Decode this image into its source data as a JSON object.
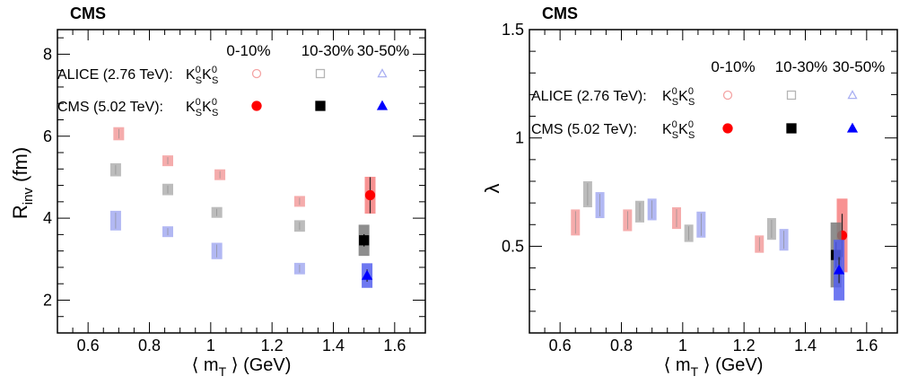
{
  "chart_data": [
    {
      "type": "scatter",
      "experiment_label": "CMS",
      "ylabel_main": "R",
      "ylabel_sub": "inv",
      "ylabel_unit": " (fm)",
      "xlabel_main": "⟨ m",
      "xlabel_sub": "T",
      "xlabel_unit": " ⟩ (GeV)",
      "xlim": [
        0.5,
        1.7
      ],
      "ylim": [
        1.2,
        8.6
      ],
      "xticks": [
        0.6,
        0.8,
        1.0,
        1.2,
        1.4,
        1.6
      ],
      "xtick_labels": [
        "0.6",
        "0.8",
        "1",
        "1.2",
        "1.4",
        "1.6"
      ],
      "yticks": [
        2,
        4,
        6,
        8
      ],
      "ytick_labels": [
        "2",
        "4",
        "6",
        "8"
      ],
      "legend": {
        "headers": [
          "0-10%",
          "10-30%",
          "30-50%"
        ],
        "rows": [
          {
            "label": "ALICE (2.76 TeV):",
            "reaction": "K",
            "sup": "0",
            "sub": "S"
          },
          {
            "label": "CMS (5.02 TeV):",
            "reaction": "K",
            "sup": "0",
            "sub": "S"
          }
        ]
      },
      "series": [
        {
          "name": "ALICE 0-10%",
          "color": "#f4a3a3",
          "marker": "square-box",
          "points": [
            {
              "x": 0.7,
              "y": 6.06,
              "err": 0.16
            },
            {
              "x": 0.86,
              "y": 5.4,
              "err": 0.12
            },
            {
              "x": 1.03,
              "y": 5.06,
              "err": 0.1
            },
            {
              "x": 1.29,
              "y": 4.41,
              "err": 0.12
            }
          ]
        },
        {
          "name": "ALICE 10-30%",
          "color": "#b5b5b5",
          "marker": "square-box",
          "points": [
            {
              "x": 0.69,
              "y": 5.18,
              "err": 0.16
            },
            {
              "x": 0.86,
              "y": 4.7,
              "err": 0.14
            },
            {
              "x": 1.02,
              "y": 4.14,
              "err": 0.12
            },
            {
              "x": 1.29,
              "y": 3.81,
              "err": 0.14
            }
          ]
        },
        {
          "name": "ALICE 30-50%",
          "color": "#aab0f2",
          "marker": "square-box",
          "points": [
            {
              "x": 0.69,
              "y": 3.94,
              "err": 0.24
            },
            {
              "x": 0.86,
              "y": 3.67,
              "err": 0.12
            },
            {
              "x": 1.02,
              "y": 3.2,
              "err": 0.2
            },
            {
              "x": 1.29,
              "y": 2.77,
              "err": 0.14
            }
          ]
        },
        {
          "name": "CMS 0-10%",
          "color": "#ff0000",
          "box_color": "#f77f7f",
          "marker": "circle",
          "points": [
            {
              "x": 1.52,
              "y": 4.56,
              "err": 0.44,
              "syst": 0.45
            }
          ]
        },
        {
          "name": "CMS 10-30%",
          "color": "#000000",
          "box_color": "#7a7a7a",
          "marker": "square",
          "points": [
            {
              "x": 1.5,
              "y": 3.46,
              "err": 0.15,
              "syst": 0.38
            }
          ]
        },
        {
          "name": "CMS 30-50%",
          "color": "#0000ff",
          "box_color": "#5560ee",
          "marker": "triangle",
          "points": [
            {
              "x": 1.51,
              "y": 2.6,
              "err": 0.15,
              "syst": 0.3
            }
          ]
        }
      ]
    },
    {
      "type": "scatter",
      "experiment_label": "CMS",
      "ylabel_main": "λ",
      "xlabel_main": "⟨ m",
      "xlabel_sub": "T",
      "xlabel_unit": " ⟩ (GeV)",
      "xlim": [
        0.5,
        1.7
      ],
      "ylim": [
        0.1,
        1.5
      ],
      "xticks": [
        0.6,
        0.8,
        1.0,
        1.2,
        1.4,
        1.6
      ],
      "xtick_labels": [
        "0.6",
        "0.8",
        "1",
        "1.2",
        "1.4",
        "1.6"
      ],
      "yticks": [
        0.5,
        1.0,
        1.5
      ],
      "ytick_labels": [
        "0.5",
        "1",
        "1.5"
      ],
      "legend": {
        "headers": [
          "0-10%",
          "10-30%",
          "30-50%"
        ],
        "rows": [
          {
            "label": "ALICE (2.76 TeV):",
            "reaction": "K",
            "sup": "0",
            "sub": "S"
          },
          {
            "label": "CMS (5.02 TeV):",
            "reaction": "K",
            "sup": "0",
            "sub": "S"
          }
        ]
      },
      "series": [
        {
          "name": "ALICE 0-10%",
          "color": "#f4a3a3",
          "marker": "square-box",
          "points": [
            {
              "x": 0.65,
              "y": 0.61,
              "err": 0.06
            },
            {
              "x": 0.82,
              "y": 0.62,
              "err": 0.05
            },
            {
              "x": 0.98,
              "y": 0.63,
              "err": 0.05
            },
            {
              "x": 1.25,
              "y": 0.51,
              "err": 0.04
            }
          ]
        },
        {
          "name": "ALICE 10-30%",
          "color": "#b5b5b5",
          "marker": "square-box",
          "points": [
            {
              "x": 0.69,
              "y": 0.74,
              "err": 0.06
            },
            {
              "x": 0.86,
              "y": 0.66,
              "err": 0.05
            },
            {
              "x": 1.02,
              "y": 0.56,
              "err": 0.04
            },
            {
              "x": 1.29,
              "y": 0.58,
              "err": 0.05
            }
          ]
        },
        {
          "name": "ALICE 30-50%",
          "color": "#aab0f2",
          "marker": "square-box",
          "points": [
            {
              "x": 0.73,
              "y": 0.69,
              "err": 0.06
            },
            {
              "x": 0.9,
              "y": 0.67,
              "err": 0.05
            },
            {
              "x": 1.06,
              "y": 0.6,
              "err": 0.06
            },
            {
              "x": 1.33,
              "y": 0.53,
              "err": 0.05
            }
          ]
        },
        {
          "name": "CMS 0-10%",
          "color": "#ff0000",
          "box_color": "#f77f7f",
          "marker": "circle",
          "points": [
            {
              "x": 1.52,
              "y": 0.55,
              "err": 0.1,
              "syst": 0.17
            }
          ]
        },
        {
          "name": "CMS 10-30%",
          "color": "#000000",
          "box_color": "#7a7a7a",
          "marker": "square",
          "points": [
            {
              "x": 1.5,
              "y": 0.46,
              "err": 0.06,
              "syst": 0.15
            }
          ]
        },
        {
          "name": "CMS 30-50%",
          "color": "#0000ff",
          "box_color": "#5560ee",
          "marker": "triangle",
          "points": [
            {
              "x": 1.51,
              "y": 0.39,
              "err": 0.06,
              "syst": 0.14
            }
          ]
        }
      ]
    }
  ]
}
